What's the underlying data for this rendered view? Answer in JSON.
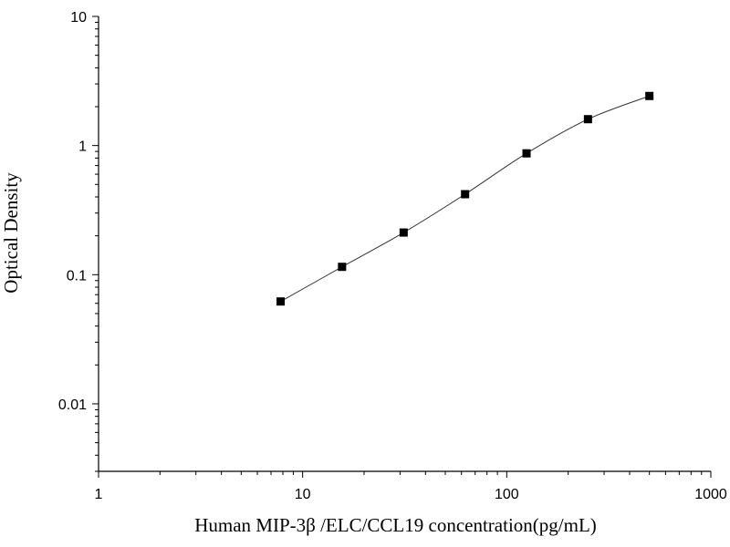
{
  "chart_data": {
    "type": "scatter",
    "title": "",
    "xlabel": "Human MIP-3β /ELC/CCL19 concentration(pg/mL)",
    "ylabel": "Optical Density",
    "xscale": "log",
    "yscale": "log",
    "xlim": [
      1,
      1000
    ],
    "ylim": [
      0.003,
      10
    ],
    "x_ticks": [
      1,
      10,
      100,
      1000
    ],
    "x_tick_labels": [
      "1",
      "10",
      "100",
      "1000"
    ],
    "y_ticks": [
      0.01,
      0.1,
      1,
      10
    ],
    "y_tick_labels": [
      "0.01",
      "0.1",
      "1",
      "10"
    ],
    "grid": false,
    "legend": "none",
    "series": [
      {
        "x": [
          7.8,
          15.6,
          31.25,
          62.5,
          125,
          250,
          500
        ],
        "y": [
          0.062,
          0.115,
          0.212,
          0.42,
          0.87,
          1.6,
          2.42
        ],
        "marker": "square",
        "fit_line": true
      }
    ]
  }
}
